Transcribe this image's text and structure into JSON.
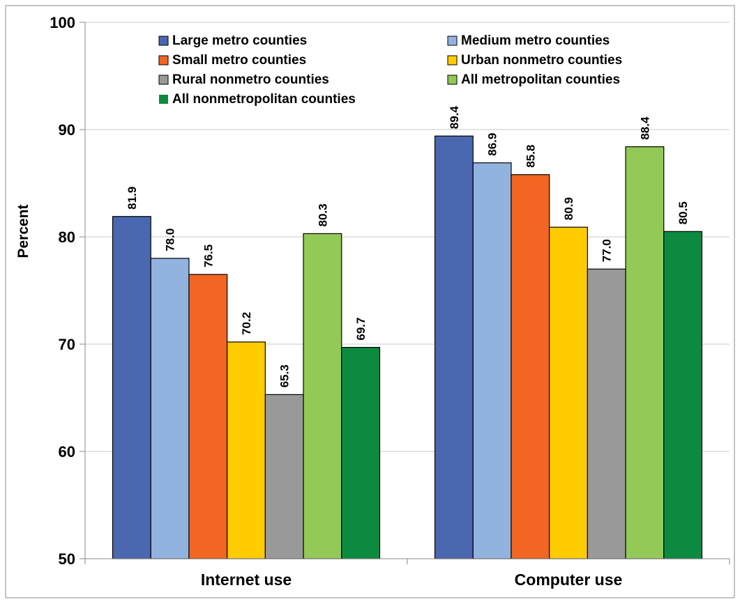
{
  "chart_data": {
    "type": "bar",
    "title": "",
    "xlabel": "",
    "ylabel": "Percent",
    "ylim": [
      50,
      100
    ],
    "yticks": [
      50,
      60,
      70,
      80,
      90,
      100
    ],
    "grid": true,
    "legend_position": "top",
    "categories": [
      "Internet use",
      "Computer use"
    ],
    "series": [
      {
        "name": "Large metro counties",
        "color": "#4A68B0",
        "values": [
          81.9,
          89.4
        ]
      },
      {
        "name": "Medium metro counties",
        "color": "#93B3DF",
        "values": [
          78.0,
          86.9
        ]
      },
      {
        "name": "Small metro counties",
        "color": "#F26522",
        "values": [
          76.5,
          85.8
        ]
      },
      {
        "name": "Urban nonmetro counties",
        "color": "#FFCC00",
        "values": [
          70.2,
          80.9
        ]
      },
      {
        "name": "Rural nonmetro counties",
        "color": "#999999",
        "values": [
          65.3,
          77.0
        ]
      },
      {
        "name": "All metropolitan counties",
        "color": "#92C957",
        "values": [
          80.3,
          88.4
        ]
      },
      {
        "name": "All nonmetropolitan counties",
        "color": "#0C8A40",
        "values": [
          69.7,
          80.5
        ]
      }
    ]
  }
}
